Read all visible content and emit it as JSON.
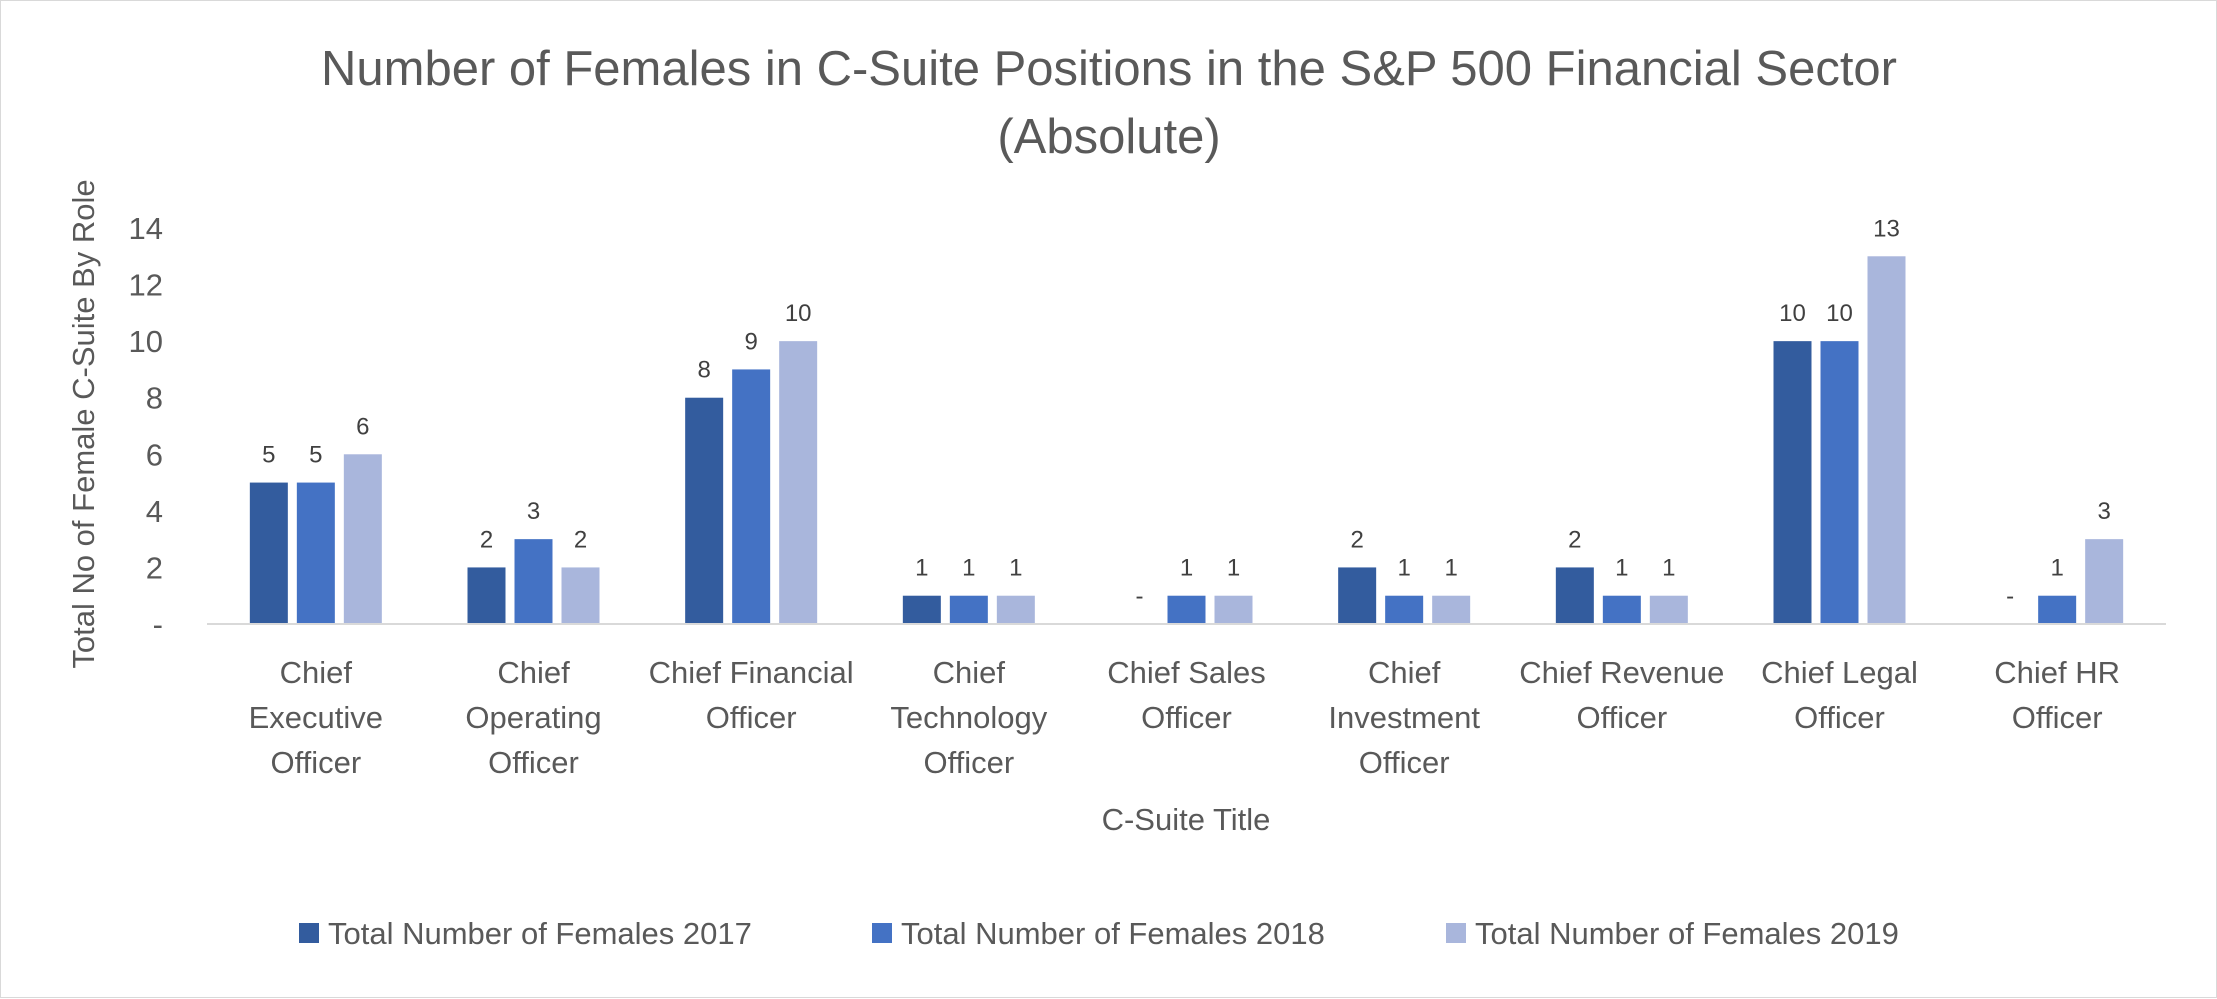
{
  "chart_data": {
    "type": "bar",
    "title_lines": [
      "Number of Females in C-Suite Positions in the S&P 500 Financial Sector",
      "(Absolute)"
    ],
    "xlabel": "C-Suite Title",
    "ylabel": "Total No of Female C-Suite By Role",
    "ylim": [
      0,
      14
    ],
    "yticks": [
      {
        "value": 0,
        "label": "-"
      },
      {
        "value": 2,
        "label": "2"
      },
      {
        "value": 4,
        "label": "4"
      },
      {
        "value": 6,
        "label": "6"
      },
      {
        "value": 8,
        "label": "8"
      },
      {
        "value": 10,
        "label": "10"
      },
      {
        "value": 12,
        "label": "12"
      },
      {
        "value": 14,
        "label": "14"
      }
    ],
    "grid": false,
    "legend_position": "bottom",
    "categories": [
      "Chief Executive Officer",
      "Chief Operating Officer",
      "Chief Financial Officer",
      "Chief Technology Officer",
      "Chief Sales Officer",
      "Chief Investment Officer",
      "Chief Revenue Officer",
      "Chief Legal Officer",
      "Chief HR Officer"
    ],
    "category_label_lines": [
      [
        "Chief",
        "Executive",
        "Officer"
      ],
      [
        "Chief",
        "Operating",
        "Officer"
      ],
      [
        "Chief Financial",
        "Officer"
      ],
      [
        "Chief",
        "Technology",
        "Officer"
      ],
      [
        "Chief Sales",
        "Officer"
      ],
      [
        "Chief",
        "Investment",
        "Officer"
      ],
      [
        "Chief Revenue",
        "Officer"
      ],
      [
        "Chief Legal",
        "Officer"
      ],
      [
        "Chief HR",
        "Officer"
      ]
    ],
    "series": [
      {
        "name": "Total Number of Females 2017",
        "color": "#335C9E",
        "values": [
          5,
          2,
          8,
          1,
          0,
          2,
          2,
          10,
          0
        ]
      },
      {
        "name": "Total Number of Females 2018",
        "color": "#4472C4",
        "values": [
          5,
          3,
          9,
          1,
          1,
          1,
          1,
          10,
          1
        ]
      },
      {
        "name": "Total Number of Females 2019",
        "color": "#A9B6DC",
        "values": [
          6,
          2,
          10,
          1,
          1,
          1,
          1,
          13,
          3
        ]
      }
    ],
    "zero_label": "-"
  }
}
